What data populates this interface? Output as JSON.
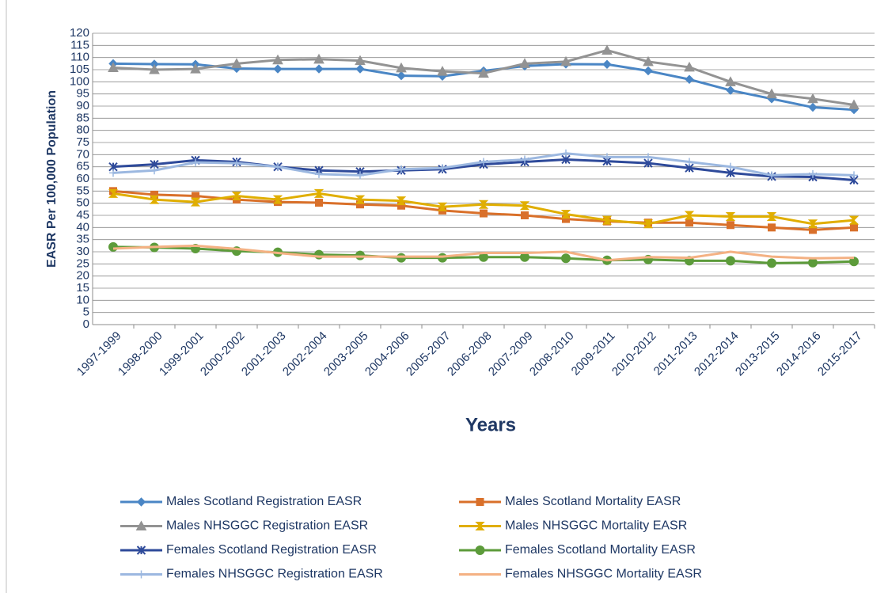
{
  "chart_data": {
    "type": "line",
    "y_label": "EASR Per 100,000 Population",
    "x_label": "Years",
    "categories": [
      "1997-1999",
      "1998-2000",
      "1999-2001",
      "2000-2002",
      "2001-2003",
      "2002-2004",
      "2003-2005",
      "2004-2006",
      "2005-2007",
      "2006-2008",
      "2007-2009",
      "2008-2010",
      "2009-2011",
      "2010-2012",
      "2011-2013",
      "2012-2014",
      "2013-2015",
      "2014-2016",
      "2015-2017"
    ],
    "ylim": [
      0,
      120
    ],
    "yticks": [
      0,
      5,
      10,
      15,
      20,
      25,
      30,
      35,
      40,
      45,
      50,
      55,
      60,
      65,
      70,
      75,
      80,
      85,
      90,
      95,
      100,
      105,
      110,
      115,
      120
    ],
    "grid": true,
    "series": [
      {
        "name": "Males Scotland Registration EASR",
        "color": "#4a86c5",
        "marker": "diamond",
        "values": [
          107.5,
          107.3,
          107.2,
          105.5,
          105.3,
          105.3,
          105.3,
          102.5,
          102.3,
          104.5,
          106.5,
          107.3,
          107.2,
          104.5,
          101,
          96.5,
          93,
          89.5,
          88.5
        ]
      },
      {
        "name": "Males Scotland Mortality EASR",
        "color": "#d9702a",
        "marker": "square",
        "values": [
          55,
          53.5,
          53,
          51.5,
          50.5,
          50.2,
          49.5,
          49,
          47,
          45.8,
          45,
          43.5,
          42.5,
          42,
          42,
          41,
          40,
          39,
          40
        ]
      },
      {
        "name": "Males NHSGGC Registration EASR",
        "color": "#939393",
        "marker": "triangle",
        "values": [
          105.8,
          105,
          105.3,
          107.5,
          109,
          109.3,
          108.7,
          105.7,
          104.3,
          103.5,
          107.5,
          108.3,
          113,
          108.3,
          106,
          100,
          95,
          93,
          90.5
        ]
      },
      {
        "name": "Males NHSGGC Mortality EASR",
        "color": "#e0ae00",
        "marker": "hourglass",
        "values": [
          54,
          51.5,
          50.5,
          53,
          51.5,
          54,
          51.5,
          51,
          48.5,
          49.5,
          49,
          45.5,
          43,
          41.5,
          45,
          44.5,
          44.5,
          41.5,
          43
        ]
      },
      {
        "name": "Females Scotland Registration EASR",
        "color": "#2e4a9a",
        "marker": "star",
        "values": [
          65,
          66,
          67.7,
          67,
          65,
          63.5,
          63,
          63.5,
          64,
          66,
          67,
          68,
          67.3,
          66.5,
          64.5,
          62.5,
          61,
          60.8,
          59.5
        ]
      },
      {
        "name": "Females Scotland Mortality EASR",
        "color": "#5c9b3a",
        "marker": "circle",
        "values": [
          32,
          31.8,
          31.3,
          30.3,
          29.8,
          28.8,
          28.5,
          27.5,
          27.5,
          27.8,
          27.8,
          27.3,
          26.5,
          26.8,
          26.3,
          26.3,
          25.3,
          25.5,
          26
        ]
      },
      {
        "name": "Females NHSGGC Registration EASR",
        "color": "#9cb8e0",
        "marker": "plus",
        "values": [
          62.5,
          63.5,
          66.8,
          66.5,
          65,
          62,
          61.5,
          64,
          64.5,
          67,
          68,
          70.5,
          69,
          69,
          67,
          65,
          61.5,
          62,
          61.5
        ]
      },
      {
        "name": "Females NHSGGC Mortality EASR",
        "color": "#f4b183",
        "values": [
          31.3,
          32,
          32.5,
          31.2,
          29.5,
          28,
          28,
          28,
          28,
          29.5,
          29.5,
          30,
          26.5,
          27.8,
          27.5,
          30,
          28,
          27.3,
          27.5
        ]
      }
    ]
  }
}
